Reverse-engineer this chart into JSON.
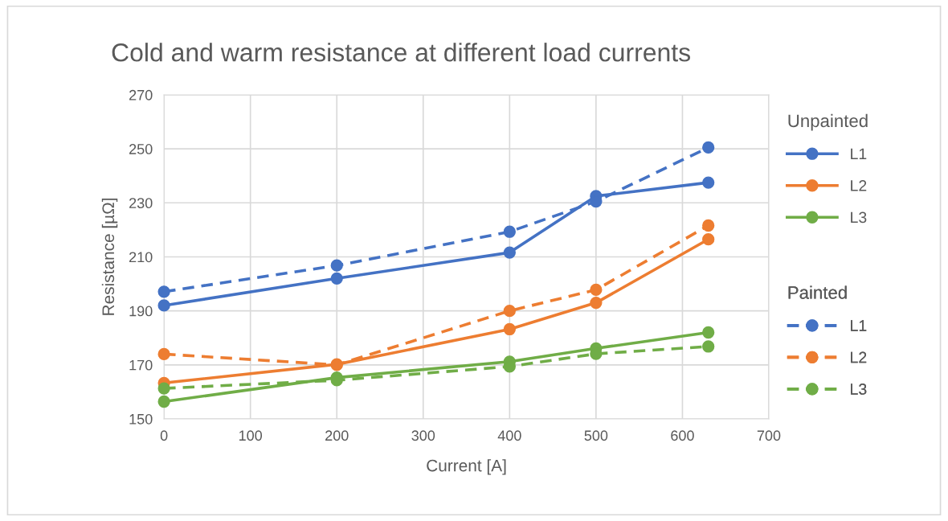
{
  "chart_data": {
    "type": "line",
    "title": "Cold and warm resistance at different load currents",
    "xlabel": "Current [A]",
    "ylabel": "Resistance [µΩ]",
    "x": [
      0,
      200,
      400,
      500,
      630
    ],
    "xlim": [
      0,
      700
    ],
    "xticks": [
      0,
      100,
      200,
      300,
      400,
      500,
      600,
      700
    ],
    "ylim": [
      150,
      270
    ],
    "yticks": [
      150,
      170,
      190,
      210,
      230,
      250,
      270
    ],
    "grid": true,
    "legend": "right",
    "marker": "circle",
    "legend_title": [
      "Unpainted",
      "Painted"
    ],
    "series": [
      {
        "name": "L1",
        "color": "#4472c4",
        "line_style": "solid",
        "values": [
          192,
          202,
          211.6,
          232.5,
          237.5
        ]
      },
      {
        "name": "L2",
        "color": "#ed7d31",
        "line_style": "solid",
        "values": [
          163.3,
          170.2,
          183.2,
          193,
          216.5
        ]
      },
      {
        "name": "L3",
        "color": "#70ad47",
        "line_style": "solid",
        "values": [
          156.4,
          165.3,
          171.2,
          176.1,
          182
        ]
      },
      {
        "name": "L1",
        "color": "#4472c4",
        "line_style": "dashed",
        "values": [
          197.1,
          206.8,
          219.3,
          230.5,
          250.5
        ]
      },
      {
        "name": "L2",
        "color": "#ed7d31",
        "line_style": "dashed",
        "values": [
          174,
          170,
          190,
          197.8,
          221.6
        ]
      },
      {
        "name": "L3",
        "color": "#70ad47",
        "line_style": "dashed",
        "values": [
          161.3,
          164.3,
          169.4,
          174.1,
          176.8
        ]
      }
    ]
  }
}
